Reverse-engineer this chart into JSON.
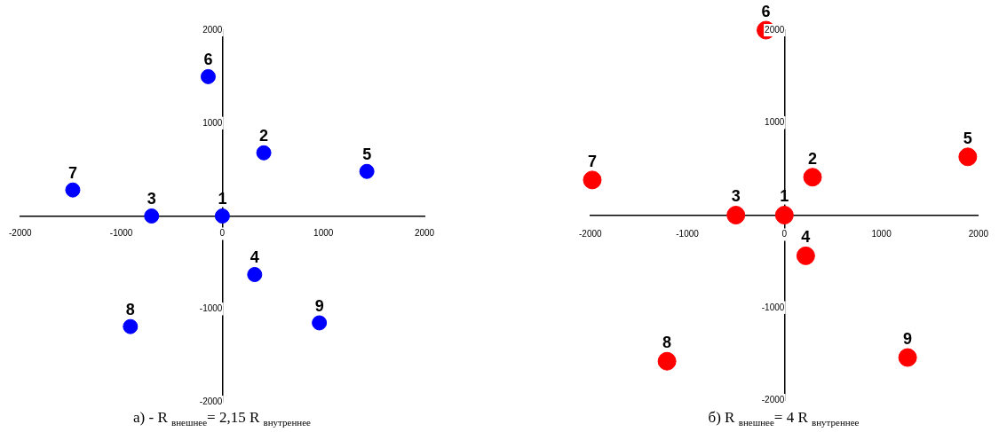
{
  "chart_data": [
    {
      "type": "scatter",
      "title": "а) - R $_{внешнее}$= 2,15 R $_{внутреннее}$",
      "marker": "circle",
      "grid": false,
      "xlim": [
        -2000,
        2000
      ],
      "ylim": [
        -2000,
        2000
      ],
      "xticks": [
        -2000,
        -1000,
        0,
        1000,
        2000
      ],
      "yticks": [
        -2000,
        -1000,
        1000,
        2000
      ],
      "series": [
        {
          "color": "#0000ff",
          "x": [
            0,
            410,
            -700,
            320,
            1430,
            -140,
            -1480,
            -910,
            960
          ],
          "values": [
            0,
            680,
            0,
            -630,
            480,
            1500,
            280,
            -1190,
            -1150
          ]
        }
      ],
      "annotations": [
        {
          "text": "1",
          "x": 0,
          "y": 0
        },
        {
          "text": "2",
          "x": 410,
          "y": 680
        },
        {
          "text": "3",
          "x": -700,
          "y": 0
        },
        {
          "text": "4",
          "x": 320,
          "y": -630
        },
        {
          "text": "5",
          "x": 1430,
          "y": 480
        },
        {
          "text": "6",
          "x": -140,
          "y": 1500
        },
        {
          "text": "7",
          "x": -1480,
          "y": 280
        },
        {
          "text": "8",
          "x": -910,
          "y": -1190
        },
        {
          "text": "9",
          "x": 960,
          "y": -1150
        }
      ]
    },
    {
      "type": "scatter",
      "title": "б) R $_{внешнее}$= 4 R $_{внутреннее}$",
      "marker": "circle",
      "grid": false,
      "xlim": [
        -2000,
        2000
      ],
      "ylim": [
        -2000,
        2000
      ],
      "xticks": [
        -2000,
        -1000,
        0,
        1000,
        2000
      ],
      "yticks": [
        -2000,
        -1000,
        1000,
        2000
      ],
      "series": [
        {
          "color": "#ff0000",
          "x": [
            0,
            290,
            -500,
            220,
            1890,
            -190,
            -1980,
            -1210,
            1270
          ],
          "values": [
            0,
            410,
            0,
            -440,
            630,
            2000,
            380,
            -1580,
            -1540
          ]
        }
      ],
      "annotations": [
        {
          "text": "1",
          "x": 0,
          "y": 0
        },
        {
          "text": "2",
          "x": 290,
          "y": 410
        },
        {
          "text": "3",
          "x": -500,
          "y": 0
        },
        {
          "text": "4",
          "x": 220,
          "y": -440
        },
        {
          "text": "5",
          "x": 1890,
          "y": 630
        },
        {
          "text": "6",
          "x": -190,
          "y": 2000
        },
        {
          "text": "7",
          "x": -1980,
          "y": 380
        },
        {
          "text": "8",
          "x": -1210,
          "y": -1580
        },
        {
          "text": "9",
          "x": 1270,
          "y": -1540
        }
      ]
    }
  ]
}
